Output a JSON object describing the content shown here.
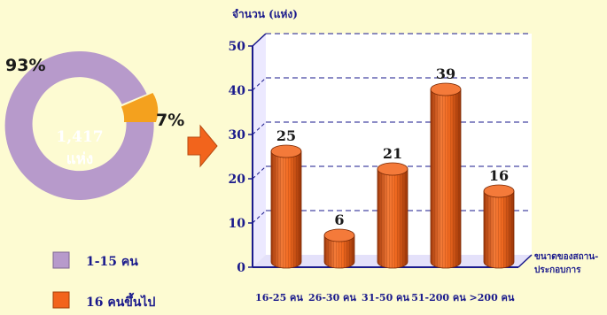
{
  "chart_data": [
    {
      "type": "pie",
      "center_label": [
        "1,417",
        "แห่ง"
      ],
      "slices": [
        {
          "label": "1-15 คน",
          "percent": 93,
          "percent_label": "93%",
          "color": "#b79acb"
        },
        {
          "label": "16 คนขึ้นไป",
          "percent": 7,
          "percent_label": "7%",
          "color": "#f4a11e"
        }
      ],
      "legend": [
        {
          "label": "1-15 คน",
          "color": "#b79acb"
        },
        {
          "label": "16 คนขึ้นไป",
          "color": "#f2641c"
        }
      ]
    },
    {
      "type": "bar",
      "title": "",
      "ylabel": "จำนวน (แห่ง)",
      "xlabel": "ขนาดของสถาน-ประกอบการ",
      "categories": [
        "16-25 คน",
        "26-30 คน",
        "31-50 คน",
        "51-200 คน",
        ">200 คน"
      ],
      "values": [
        25,
        6,
        21,
        39,
        16
      ],
      "ylim": [
        0,
        50
      ],
      "yticks": [
        "0",
        "10",
        "20",
        "30",
        "40",
        "50"
      ],
      "bar_color": "#f2641c",
      "grid": "dashed"
    }
  ],
  "colors": {
    "background": "#fdfbd2",
    "arrow": "#f2641c",
    "axis": "#1a1a8c"
  },
  "icons": {
    "connector": "right-arrow-icon"
  }
}
